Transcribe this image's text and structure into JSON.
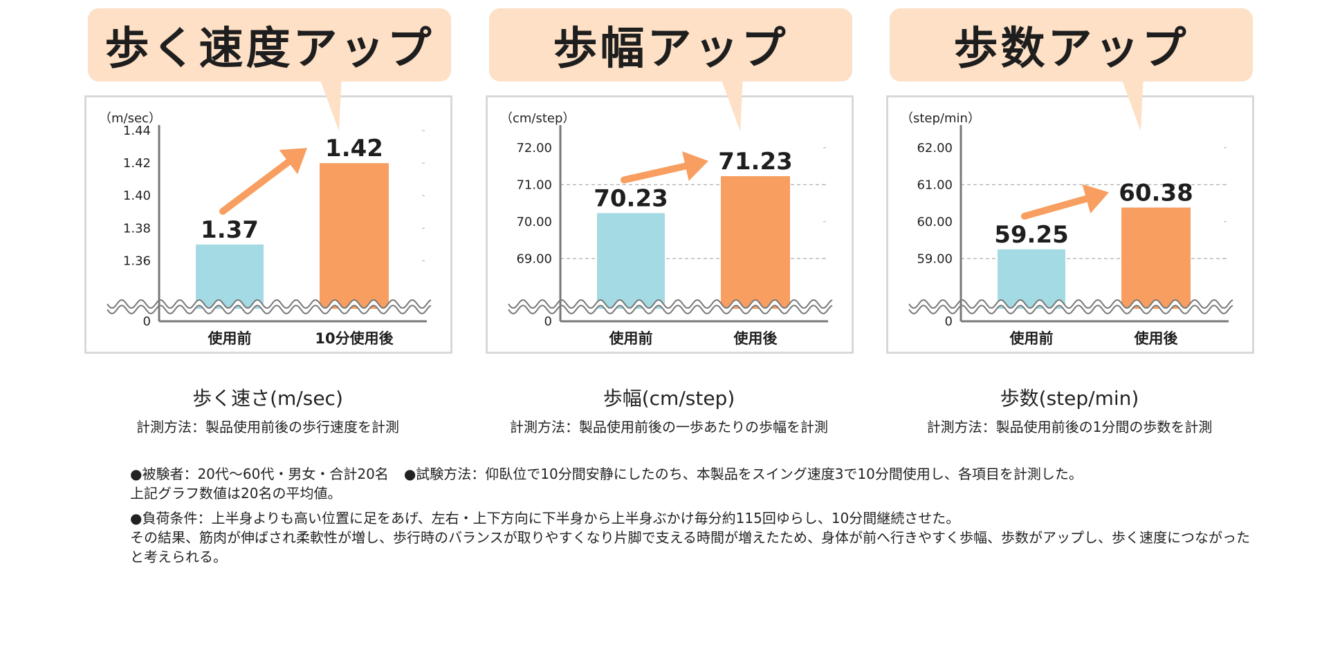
{
  "colors": {
    "banner": "#fde0c5",
    "before": "#a3dae3",
    "after": "#f89e60",
    "arrow": "#f89e60",
    "axis": "#777777",
    "grid": "#999999",
    "box_border": "#d8d8d8"
  },
  "charts": [
    {
      "banner": "歩く速度アップ",
      "unit": "（m/sec）",
      "caption_title": "歩く速さ(m/sec)",
      "caption_desc": "計測方法：製品使用前後の歩行速度を計測"
    },
    {
      "banner": "歩幅アップ",
      "unit": "（cm/step）",
      "caption_title": "歩幅(cm/step)",
      "caption_desc": "計測方法：製品使用前後の一歩あたりの歩幅を計測"
    },
    {
      "banner": "歩数アップ",
      "unit": "（step/min）",
      "caption_title": "歩数(step/min)",
      "caption_desc": "計測方法：製品使用前後の1分間の歩数を計測"
    }
  ],
  "chart_data": [
    {
      "type": "bar",
      "categories": [
        "使用前",
        "10分使用後"
      ],
      "values": [
        1.37,
        1.42
      ],
      "value_labels": [
        "1.37",
        "1.42"
      ],
      "ylabel": "（m/sec）",
      "yticks": [
        "0",
        "1.36",
        "1.38",
        "1.40",
        "1.42",
        "1.44"
      ],
      "ylim": [
        1.35,
        1.44
      ],
      "axis_break": true,
      "grid": false
    },
    {
      "type": "bar",
      "categories": [
        "使用前",
        "使用後"
      ],
      "values": [
        70.23,
        71.23
      ],
      "value_labels": [
        "70.23",
        "71.23"
      ],
      "ylabel": "（cm/step）",
      "yticks": [
        "0",
        "69.00",
        "70.00",
        "71.00",
        "72.00"
      ],
      "ylim": [
        68.5,
        72.5
      ],
      "axis_break": true,
      "grid": true,
      "grid_lines": [
        69,
        71
      ]
    },
    {
      "type": "bar",
      "categories": [
        "使用前",
        "使用後"
      ],
      "values": [
        59.25,
        60.38
      ],
      "value_labels": [
        "59.25",
        "60.38"
      ],
      "ylabel": "（step/min）",
      "yticks": [
        "0",
        "59.00",
        "60.00",
        "61.00",
        "62.00"
      ],
      "ylim": [
        58.5,
        62.5
      ],
      "axis_break": true,
      "grid": true,
      "grid_lines": [
        59,
        61
      ]
    }
  ],
  "notes": {
    "line1a": "●被験者：20代～60代・男女・合計20名",
    "line1b": "●試験方法：仰臥位で10分間安静にしたのち、本製品をスイング速度3で10分間使用し、各項目を計測した。",
    "line2": "上記グラフ数値は20名の平均値。",
    "line3": "●負荷条件：上半身よりも高い位置に足をあげ、左右・上下方向に下半身から上半身ぶかけ毎分約115回ゆらし、10分間継続させた。",
    "line4": "その結果、筋肉が伸ばされ柔軟性が増し、歩行時のバランスが取りやすくなり片脚で支える時間が増えたため、身体が前へ行きやすく歩幅、歩数がアップし、歩く速度につながったと考えられる。"
  }
}
